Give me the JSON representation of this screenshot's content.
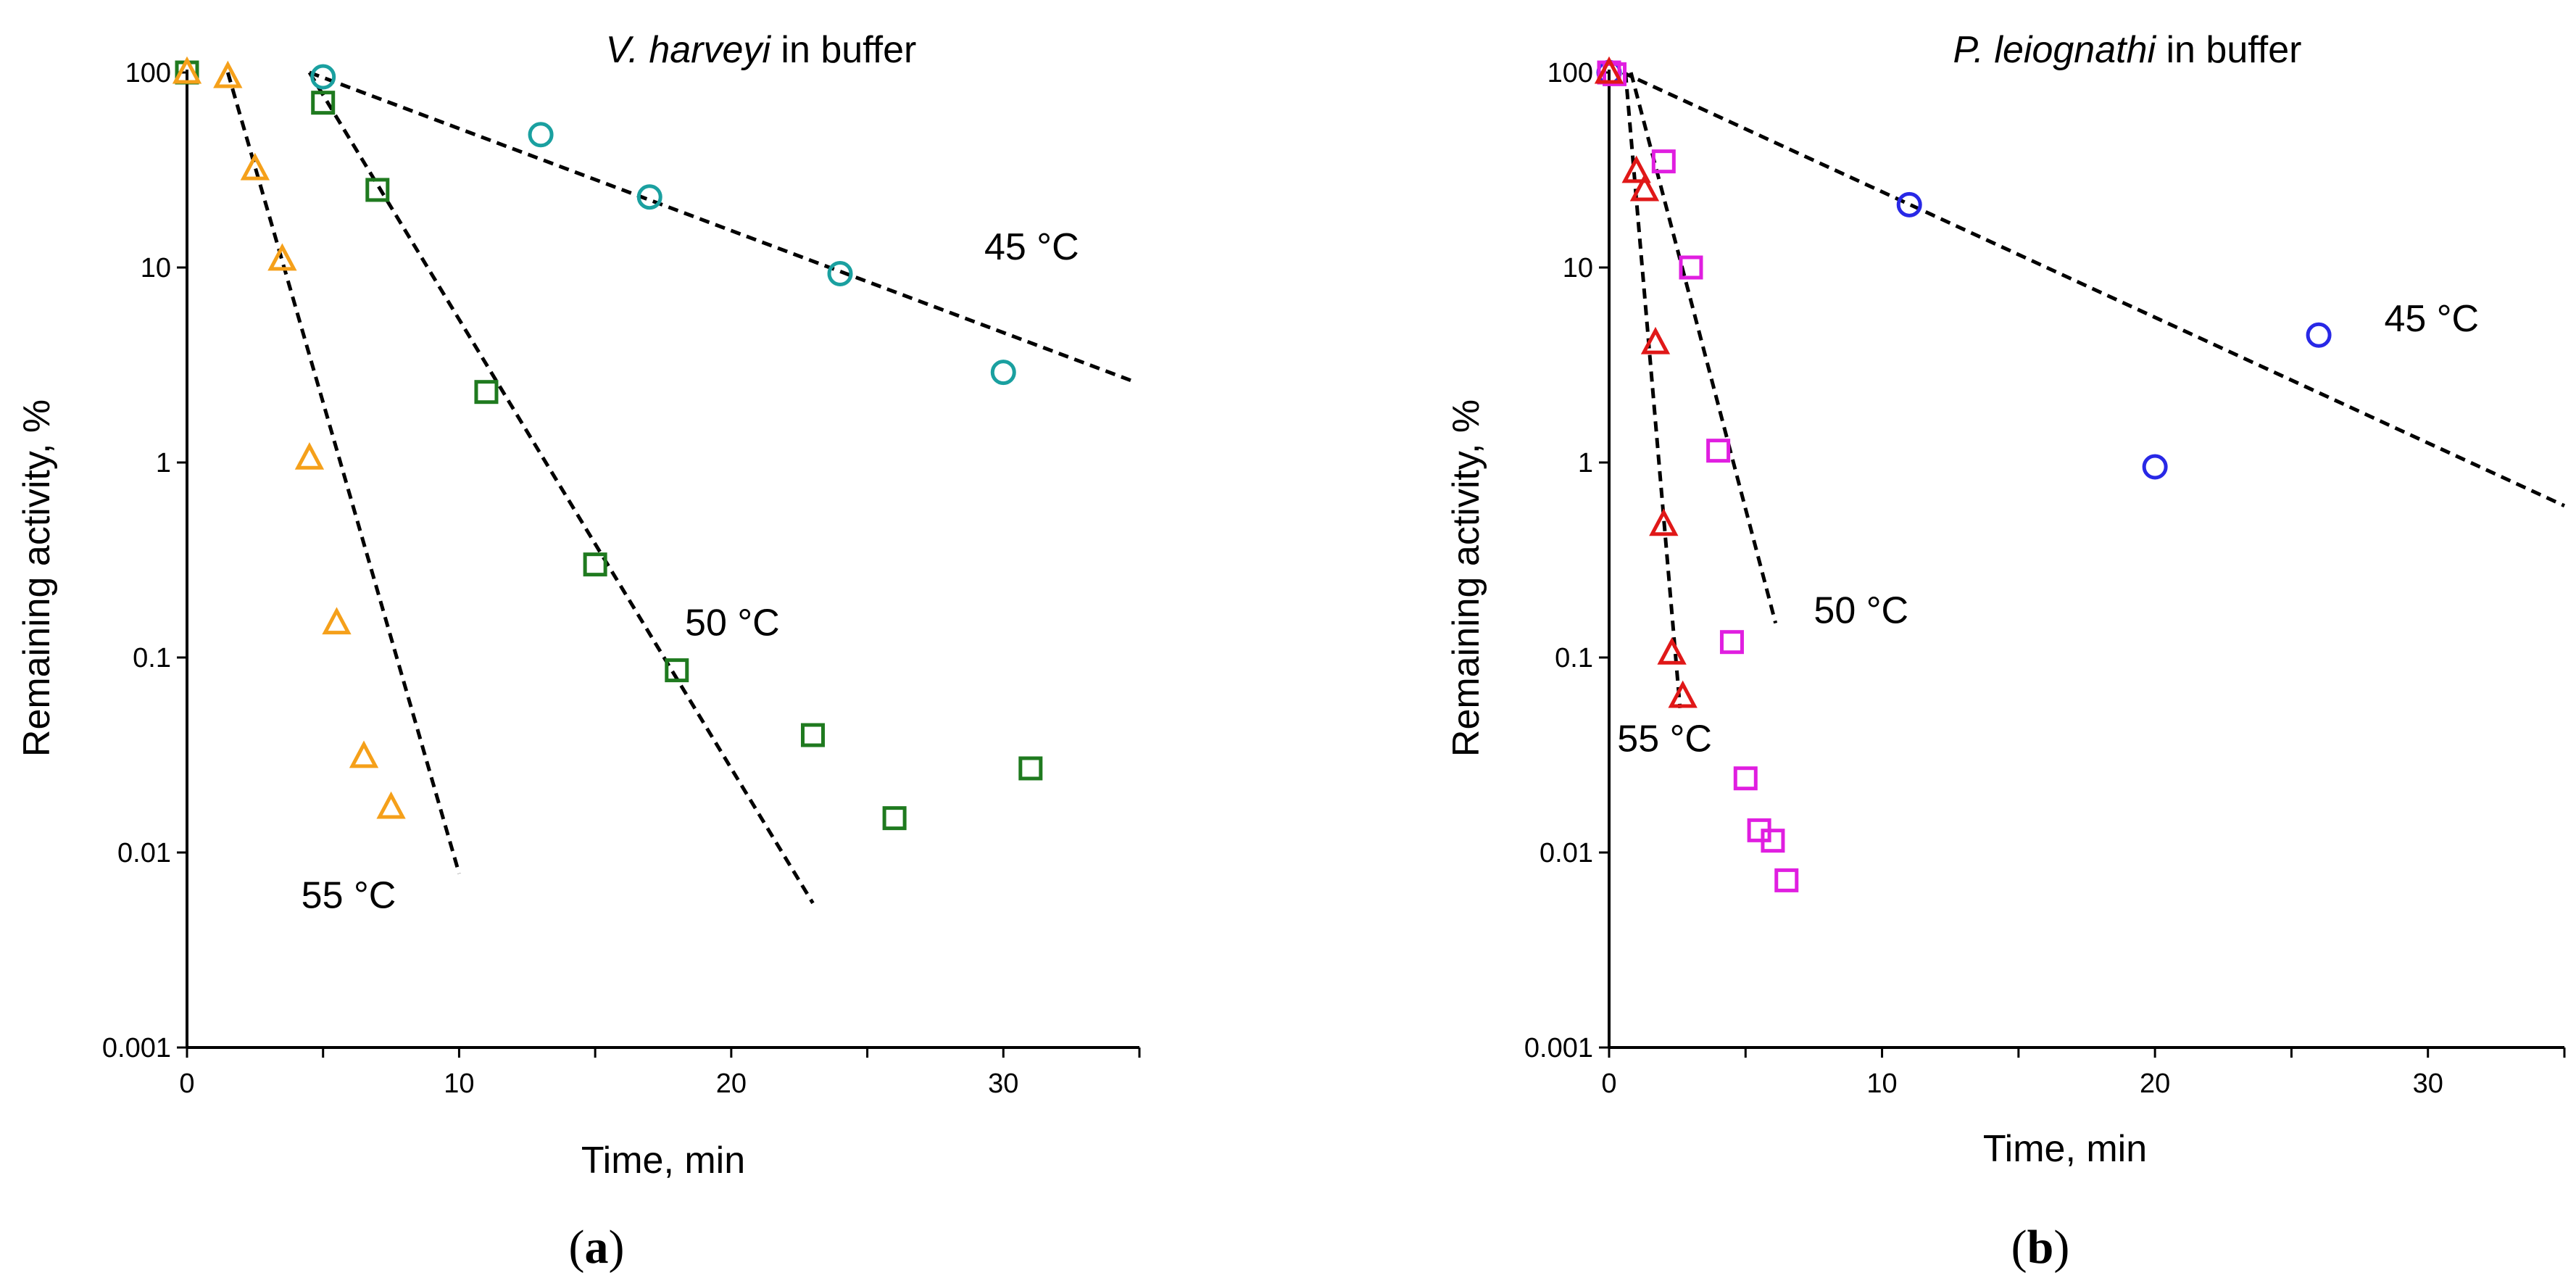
{
  "chart_data": [
    {
      "type": "scatter",
      "yscale": "log",
      "title_italic": "V. harveyi",
      "title_rest": " in buffer",
      "xlabel": "Time, min",
      "ylabel": "Remaining activity, %",
      "xlim": [
        0,
        35
      ],
      "ylim": [
        0.001,
        100
      ],
      "xticks": [
        0,
        10,
        20,
        30
      ],
      "xtick_labels": [
        "0",
        "10",
        "20",
        "30"
      ],
      "yticks": [
        0.001,
        0.01,
        0.1,
        1,
        10,
        100
      ],
      "ytick_labels": [
        "0.001",
        "0.01",
        "0.1",
        "1",
        "10",
        "100"
      ],
      "panel_label": "a",
      "series": [
        {
          "name": "45 °C",
          "marker": "circle",
          "color": "#1aa0a0",
          "x": [
            5,
            13,
            17,
            24,
            30
          ],
          "y": [
            95,
            48,
            23,
            9.3,
            2.9
          ]
        },
        {
          "name": "50 °C",
          "marker": "square",
          "color": "#1f7a1f",
          "x": [
            0,
            5,
            7,
            11,
            15,
            18,
            23,
            26,
            31
          ],
          "y": [
            100,
            70,
            25,
            2.3,
            0.3,
            0.086,
            0.04,
            0.015,
            0.027
          ]
        },
        {
          "name": "55 °C",
          "marker": "triangle",
          "color": "#f5a01a",
          "x": [
            0,
            1.5,
            2.5,
            3.5,
            4.5,
            5.5,
            6.5,
            7.5
          ],
          "y": [
            100,
            95,
            32,
            11,
            1.05,
            0.15,
            0.031,
            0.017
          ]
        }
      ],
      "fits": [
        {
          "name": "45 °C",
          "x": [
            4.5,
            34.8
          ],
          "y": [
            100,
            2.6
          ]
        },
        {
          "name": "50 °C",
          "x": [
            4.5,
            23
          ],
          "y": [
            100,
            0.0055
          ]
        },
        {
          "name": "55 °C",
          "x": [
            1.5,
            10
          ],
          "y": [
            100,
            0.0078
          ]
        }
      ],
      "annotations": [
        {
          "text": "45 °C",
          "x": 29.3,
          "y": 11
        },
        {
          "text": "50 °C",
          "x": 18.3,
          "y": 0.13
        },
        {
          "text": "55 °C",
          "x": 4.2,
          "y": 0.0052
        }
      ]
    },
    {
      "type": "scatter",
      "yscale": "log",
      "title_italic": "P. leiognathi",
      "title_rest": " in buffer",
      "xlabel": "Time, min",
      "ylabel": "Remaining activity, %",
      "xlim": [
        0,
        35
      ],
      "ylim": [
        0.001,
        100
      ],
      "xticks": [
        0,
        10,
        20,
        30
      ],
      "xtick_labels": [
        "0",
        "10",
        "20",
        "30"
      ],
      "yticks": [
        0.001,
        0.01,
        0.1,
        1,
        10,
        100
      ],
      "ytick_labels": [
        "0.001",
        "0.01",
        "0.1",
        "1",
        "10",
        "100"
      ],
      "panel_label": "b",
      "series": [
        {
          "name": "45 °C",
          "marker": "circle",
          "color": "#2828e6",
          "x": [
            0,
            11,
            20,
            26
          ],
          "y": [
            100,
            21,
            0.95,
            4.5
          ]
        },
        {
          "name": "50 °C",
          "marker": "square",
          "color": "#e01ee0",
          "x": [
            0,
            0.2,
            2,
            3,
            4,
            4.5,
            5,
            5.5,
            6,
            6.5
          ],
          "y": [
            100,
            98,
            35,
            10,
            1.15,
            0.12,
            0.024,
            0.013,
            0.0115,
            0.0072
          ]
        },
        {
          "name": "55 °C",
          "marker": "triangle",
          "color": "#e01818",
          "x": [
            0,
            1,
            1.3,
            1.7,
            2,
            2.3,
            2.7
          ],
          "y": [
            100,
            31,
            25,
            4.1,
            0.48,
            0.105,
            0.063
          ]
        }
      ],
      "fits": [
        {
          "name": "45 °C",
          "x": [
            0.5,
            35
          ],
          "y": [
            100,
            0.6
          ]
        },
        {
          "name": "50 °C",
          "x": [
            0.8,
            6.1
          ],
          "y": [
            100,
            0.15
          ]
        },
        {
          "name": "55 °C",
          "x": [
            0.6,
            2.6
          ],
          "y": [
            100,
            0.055
          ]
        }
      ],
      "annotations": [
        {
          "text": "45 °C",
          "x": 28.4,
          "y": 4.7
        },
        {
          "text": "50 °C",
          "x": 7.5,
          "y": 0.15
        },
        {
          "text": "55 °C",
          "x": 0.3,
          "y": 0.033
        }
      ]
    }
  ]
}
